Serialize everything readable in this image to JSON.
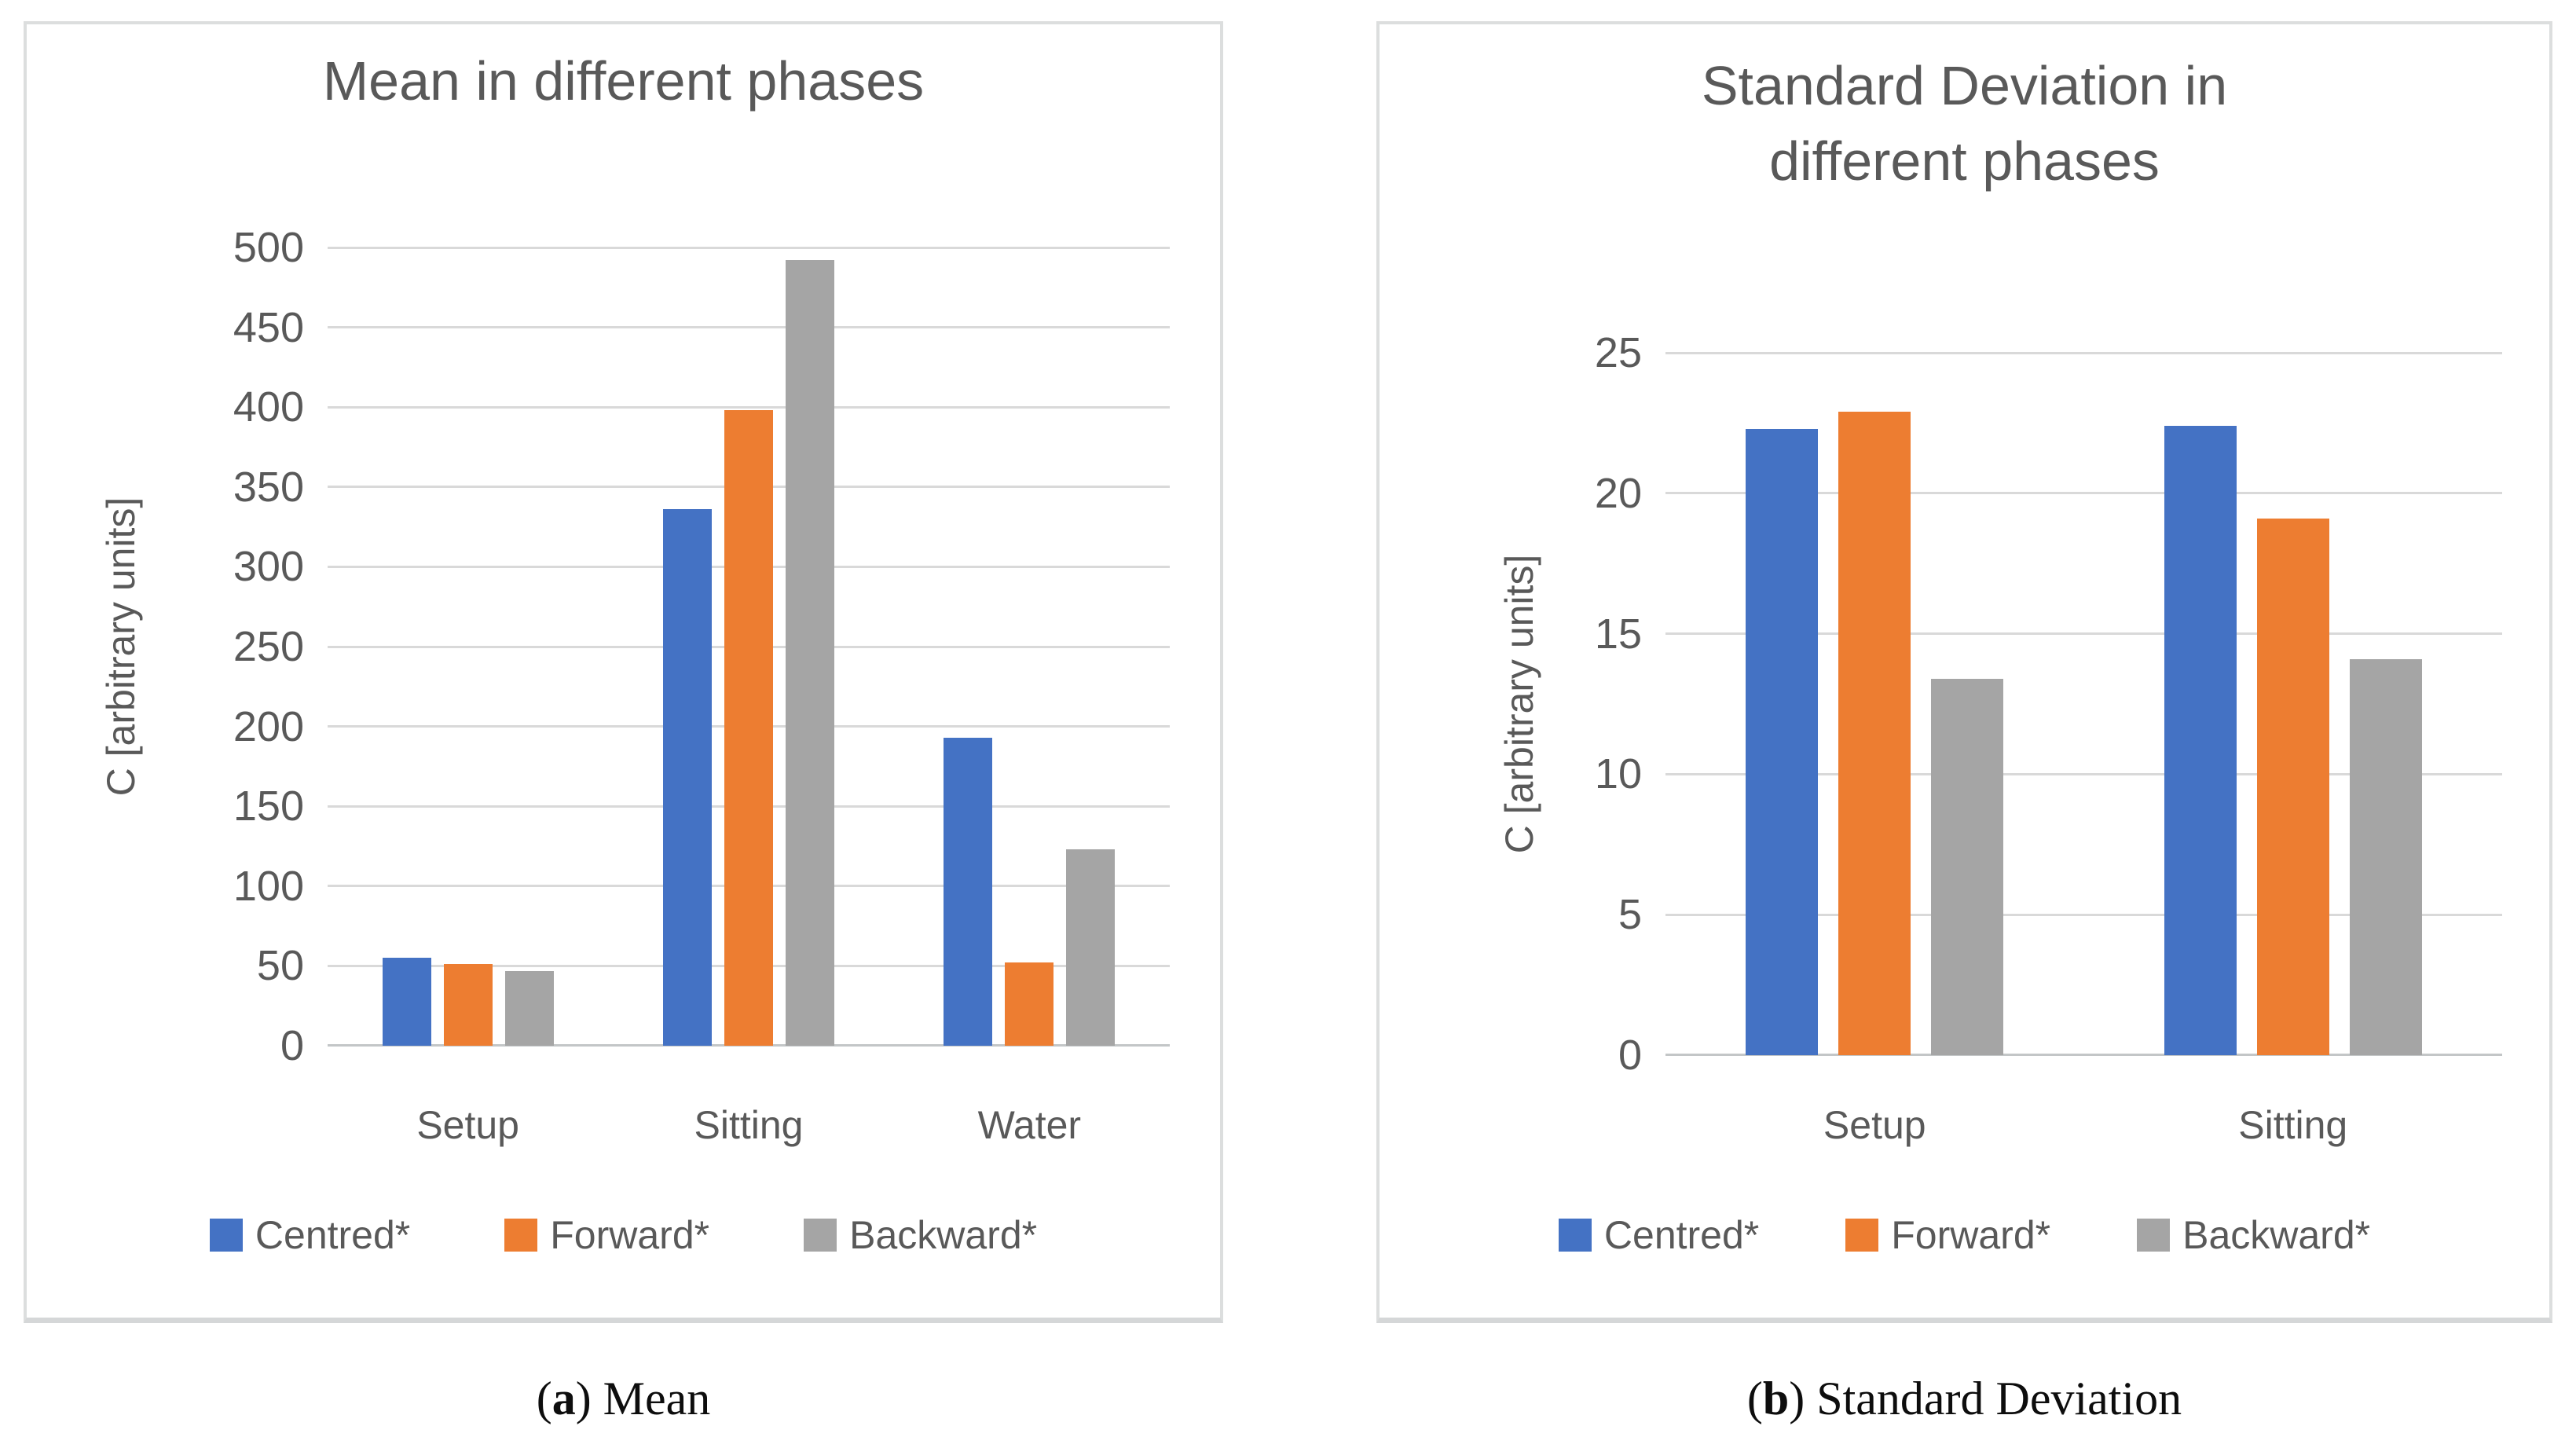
{
  "style": {
    "text_color": "#595959",
    "gridline_color": "#d9d9d9",
    "axis_line_color": "#c3c6c7",
    "panel_border_color": "#dcdede",
    "panel_border_bottom_color": "#d5d7d8",
    "caption_color": "#0d0d0d",
    "series_blue": "#4472C4",
    "series_orange": "#ED7D31",
    "series_gray": "#A5A5A5"
  },
  "chart_data": [
    {
      "type": "bar",
      "title": "Mean in different phases",
      "title_lines": [
        "Mean in different phases"
      ],
      "xlabel": "",
      "ylabel": "C [arbitrary units]",
      "ylim": [
        0,
        500
      ],
      "ytick_step": 50,
      "yticks": [
        0,
        50,
        100,
        150,
        200,
        250,
        300,
        350,
        400,
        450,
        500
      ],
      "categories": [
        "Setup",
        "Sitting",
        "Water"
      ],
      "series": [
        {
          "name": "Centred*",
          "color": "#4472C4",
          "values": [
            55,
            336,
            193
          ]
        },
        {
          "name": "Forward*",
          "color": "#ED7D31",
          "values": [
            51,
            398,
            52
          ]
        },
        {
          "name": "Backward*",
          "color": "#A5A5A5",
          "values": [
            47,
            492,
            123
          ]
        }
      ],
      "grid": true,
      "legend_position": "bottom",
      "caption": {
        "pre": "(",
        "bold": "a",
        "post": ") Mean"
      }
    },
    {
      "type": "bar",
      "title": "Standard Deviation in different phases",
      "title_lines": [
        "Standard Deviation in",
        "different phases"
      ],
      "xlabel": "",
      "ylabel": "C [arbitrary units]",
      "ylim": [
        0,
        25
      ],
      "ytick_step": 5,
      "yticks": [
        0,
        5,
        10,
        15,
        20,
        25
      ],
      "categories": [
        "Setup",
        "Sitting"
      ],
      "series": [
        {
          "name": "Centred*",
          "color": "#4472C4",
          "values": [
            22.3,
            22.4
          ]
        },
        {
          "name": "Forward*",
          "color": "#ED7D31",
          "values": [
            22.9,
            19.1
          ]
        },
        {
          "name": "Backward*",
          "color": "#A5A5A5",
          "values": [
            13.4,
            14.1
          ]
        }
      ],
      "grid": true,
      "legend_position": "bottom",
      "caption": {
        "pre": "(",
        "bold": "b",
        "post": ") Standard Deviation"
      }
    }
  ]
}
